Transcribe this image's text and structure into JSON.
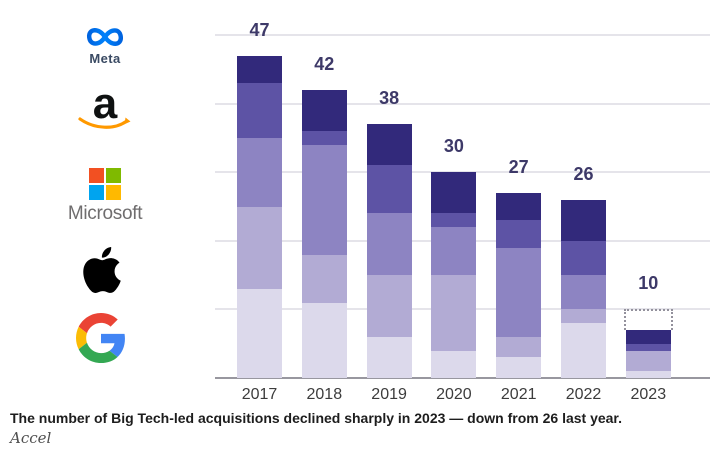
{
  "logos": {
    "meta": {
      "icon": "meta-infinity-icon",
      "label": "Meta",
      "gradient": [
        "#0064E0",
        "#0082FB"
      ],
      "word_color": "#3a4a63"
    },
    "amazon": {
      "icon": "amazon-smile-icon",
      "letter": "a",
      "smile_color": "#FF9900"
    },
    "microsoft": {
      "icon": "microsoft-squares-icon",
      "label": "Microsoft",
      "square_colors": [
        "#F25022",
        "#7FBA00",
        "#00A4EF",
        "#FFB900"
      ],
      "word_color": "#6f6d6e"
    },
    "apple": {
      "icon": "apple-icon",
      "color": "#000000"
    },
    "google": {
      "icon": "google-g-icon",
      "g_colors": [
        "#EA4335",
        "#4285F4",
        "#FBBC05",
        "#34A853"
      ]
    }
  },
  "chart_data": {
    "type": "bar",
    "stacked": true,
    "categories": [
      "2017",
      "2018",
      "2019",
      "2020",
      "2021",
      "2022",
      "2023"
    ],
    "totals": [
      47,
      42,
      38,
      30,
      27,
      26,
      10
    ],
    "series": [
      {
        "name": "Google",
        "color": "#dcd9eb",
        "values": [
          13,
          11,
          6,
          4,
          3,
          8,
          1
        ]
      },
      {
        "name": "Apple",
        "color": "#b2abd4",
        "values": [
          12,
          7,
          9,
          11,
          3,
          2,
          3
        ]
      },
      {
        "name": "Microsoft",
        "color": "#8d84c2",
        "values": [
          10,
          16,
          9,
          7,
          13,
          5,
          0
        ]
      },
      {
        "name": "Amazon",
        "color": "#5d53a5",
        "values": [
          8,
          2,
          7,
          2,
          4,
          5,
          1
        ]
      },
      {
        "name": "Meta",
        "color": "#32297b",
        "values": [
          4,
          6,
          6,
          6,
          4,
          6,
          2
        ]
      }
    ],
    "dashed_projection": {
      "year": "2023",
      "from": 7,
      "to": 10
    },
    "title": "",
    "xlabel": "",
    "ylabel": "",
    "ylim": [
      0,
      50
    ],
    "gridlines": [
      10,
      20,
      30,
      40,
      50
    ],
    "grid": true,
    "legend_position": "none"
  },
  "caption": {
    "text": "The number of Big Tech-led acquisitions declined sharply in 2023 — down from 26 last year.",
    "source": "Accel"
  }
}
